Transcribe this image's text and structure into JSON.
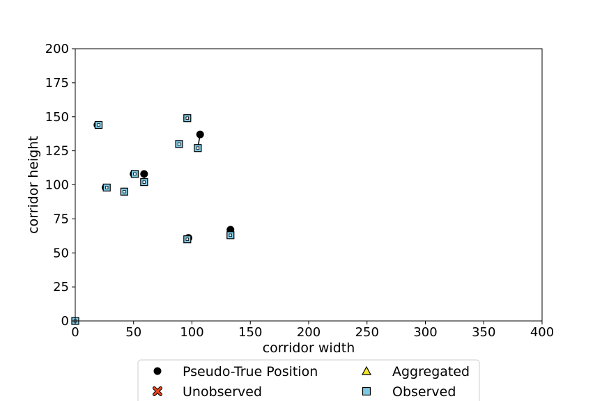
{
  "chart_data": {
    "type": "scatter",
    "title": "",
    "xlabel": "corridor width",
    "ylabel": "corridor height",
    "xlim": [
      0,
      400
    ],
    "ylim": [
      0,
      200
    ],
    "xticks": [
      0,
      50,
      100,
      150,
      200,
      250,
      300,
      350,
      400
    ],
    "yticks": [
      0,
      25,
      50,
      75,
      100,
      125,
      150,
      175,
      200
    ],
    "grid": false,
    "legend_placement": "below",
    "colors": {
      "pseudo_true": "#000000",
      "unobserved": "#e8481c",
      "aggregated": "#f5e62a",
      "observed": "#7ec8e3",
      "link": "#000000"
    },
    "legend": [
      {
        "label": "Pseudo-True Position",
        "marker": "circle"
      },
      {
        "label": "Unobserved",
        "marker": "x"
      },
      {
        "label": "Aggregated",
        "marker": "triangle"
      },
      {
        "label": "Observed",
        "marker": "square"
      }
    ],
    "series": [
      {
        "name": "Pseudo-True Position",
        "marker": "circle",
        "points": [
          [
            19,
            144
          ],
          [
            26,
            98
          ],
          [
            42,
            95
          ],
          [
            50,
            108
          ],
          [
            59,
            108
          ],
          [
            89,
            130
          ],
          [
            96,
            149
          ],
          [
            97,
            61
          ],
          [
            107,
            137
          ],
          [
            133,
            67
          ],
          [
            0,
            0
          ]
        ]
      },
      {
        "name": "Observed",
        "marker": "square",
        "points": [
          [
            20,
            144
          ],
          [
            27,
            98
          ],
          [
            42,
            95
          ],
          [
            51,
            108
          ],
          [
            59,
            102
          ],
          [
            89,
            130
          ],
          [
            96,
            149
          ],
          [
            96,
            60
          ],
          [
            105,
            127
          ],
          [
            133,
            63
          ],
          [
            0,
            0
          ]
        ]
      }
    ]
  }
}
